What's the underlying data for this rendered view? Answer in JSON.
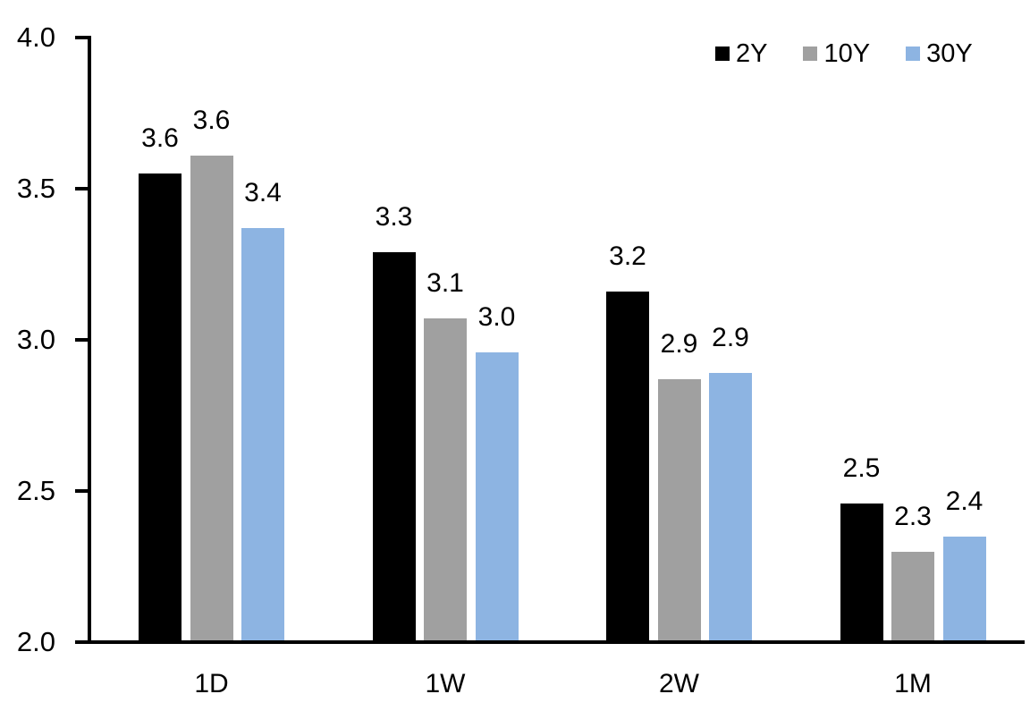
{
  "chart_data": {
    "type": "bar",
    "title": "",
    "xlabel": "",
    "ylabel": "",
    "grid": false,
    "background": "#FFFFFF",
    "axis_color": "#000000",
    "text_color": "#000000",
    "categories": [
      "1D",
      "1W",
      "2W",
      "1M"
    ],
    "series": [
      {
        "name": "2Y",
        "color": "#000000",
        "values": [
          3.55,
          3.29,
          3.16,
          2.46
        ],
        "value_labels": [
          "3.6",
          "3.3",
          "3.2",
          "2.5"
        ]
      },
      {
        "name": "10Y",
        "color": "#A0A0A0",
        "values": [
          3.61,
          3.07,
          2.87,
          2.3
        ],
        "value_labels": [
          "3.6",
          "3.1",
          "2.9",
          "2.3"
        ]
      },
      {
        "name": "30Y",
        "color": "#8DB4E2",
        "values": [
          3.37,
          2.96,
          2.89,
          2.35
        ],
        "value_labels": [
          "3.4",
          "3.0",
          "2.9",
          "2.4"
        ]
      }
    ],
    "y_axis": {
      "min": 2.0,
      "max": 4.0,
      "ticks": [
        {
          "value": 4.0,
          "label": "4.0"
        },
        {
          "value": 3.5,
          "label": "3.5"
        },
        {
          "value": 3.0,
          "label": "3.0"
        },
        {
          "value": 2.5,
          "label": "2.5"
        },
        {
          "value": 2.0,
          "label": "2.0"
        }
      ]
    },
    "legend": {
      "position": "top-right",
      "entries": [
        "2Y",
        "10Y",
        "30Y"
      ]
    }
  }
}
